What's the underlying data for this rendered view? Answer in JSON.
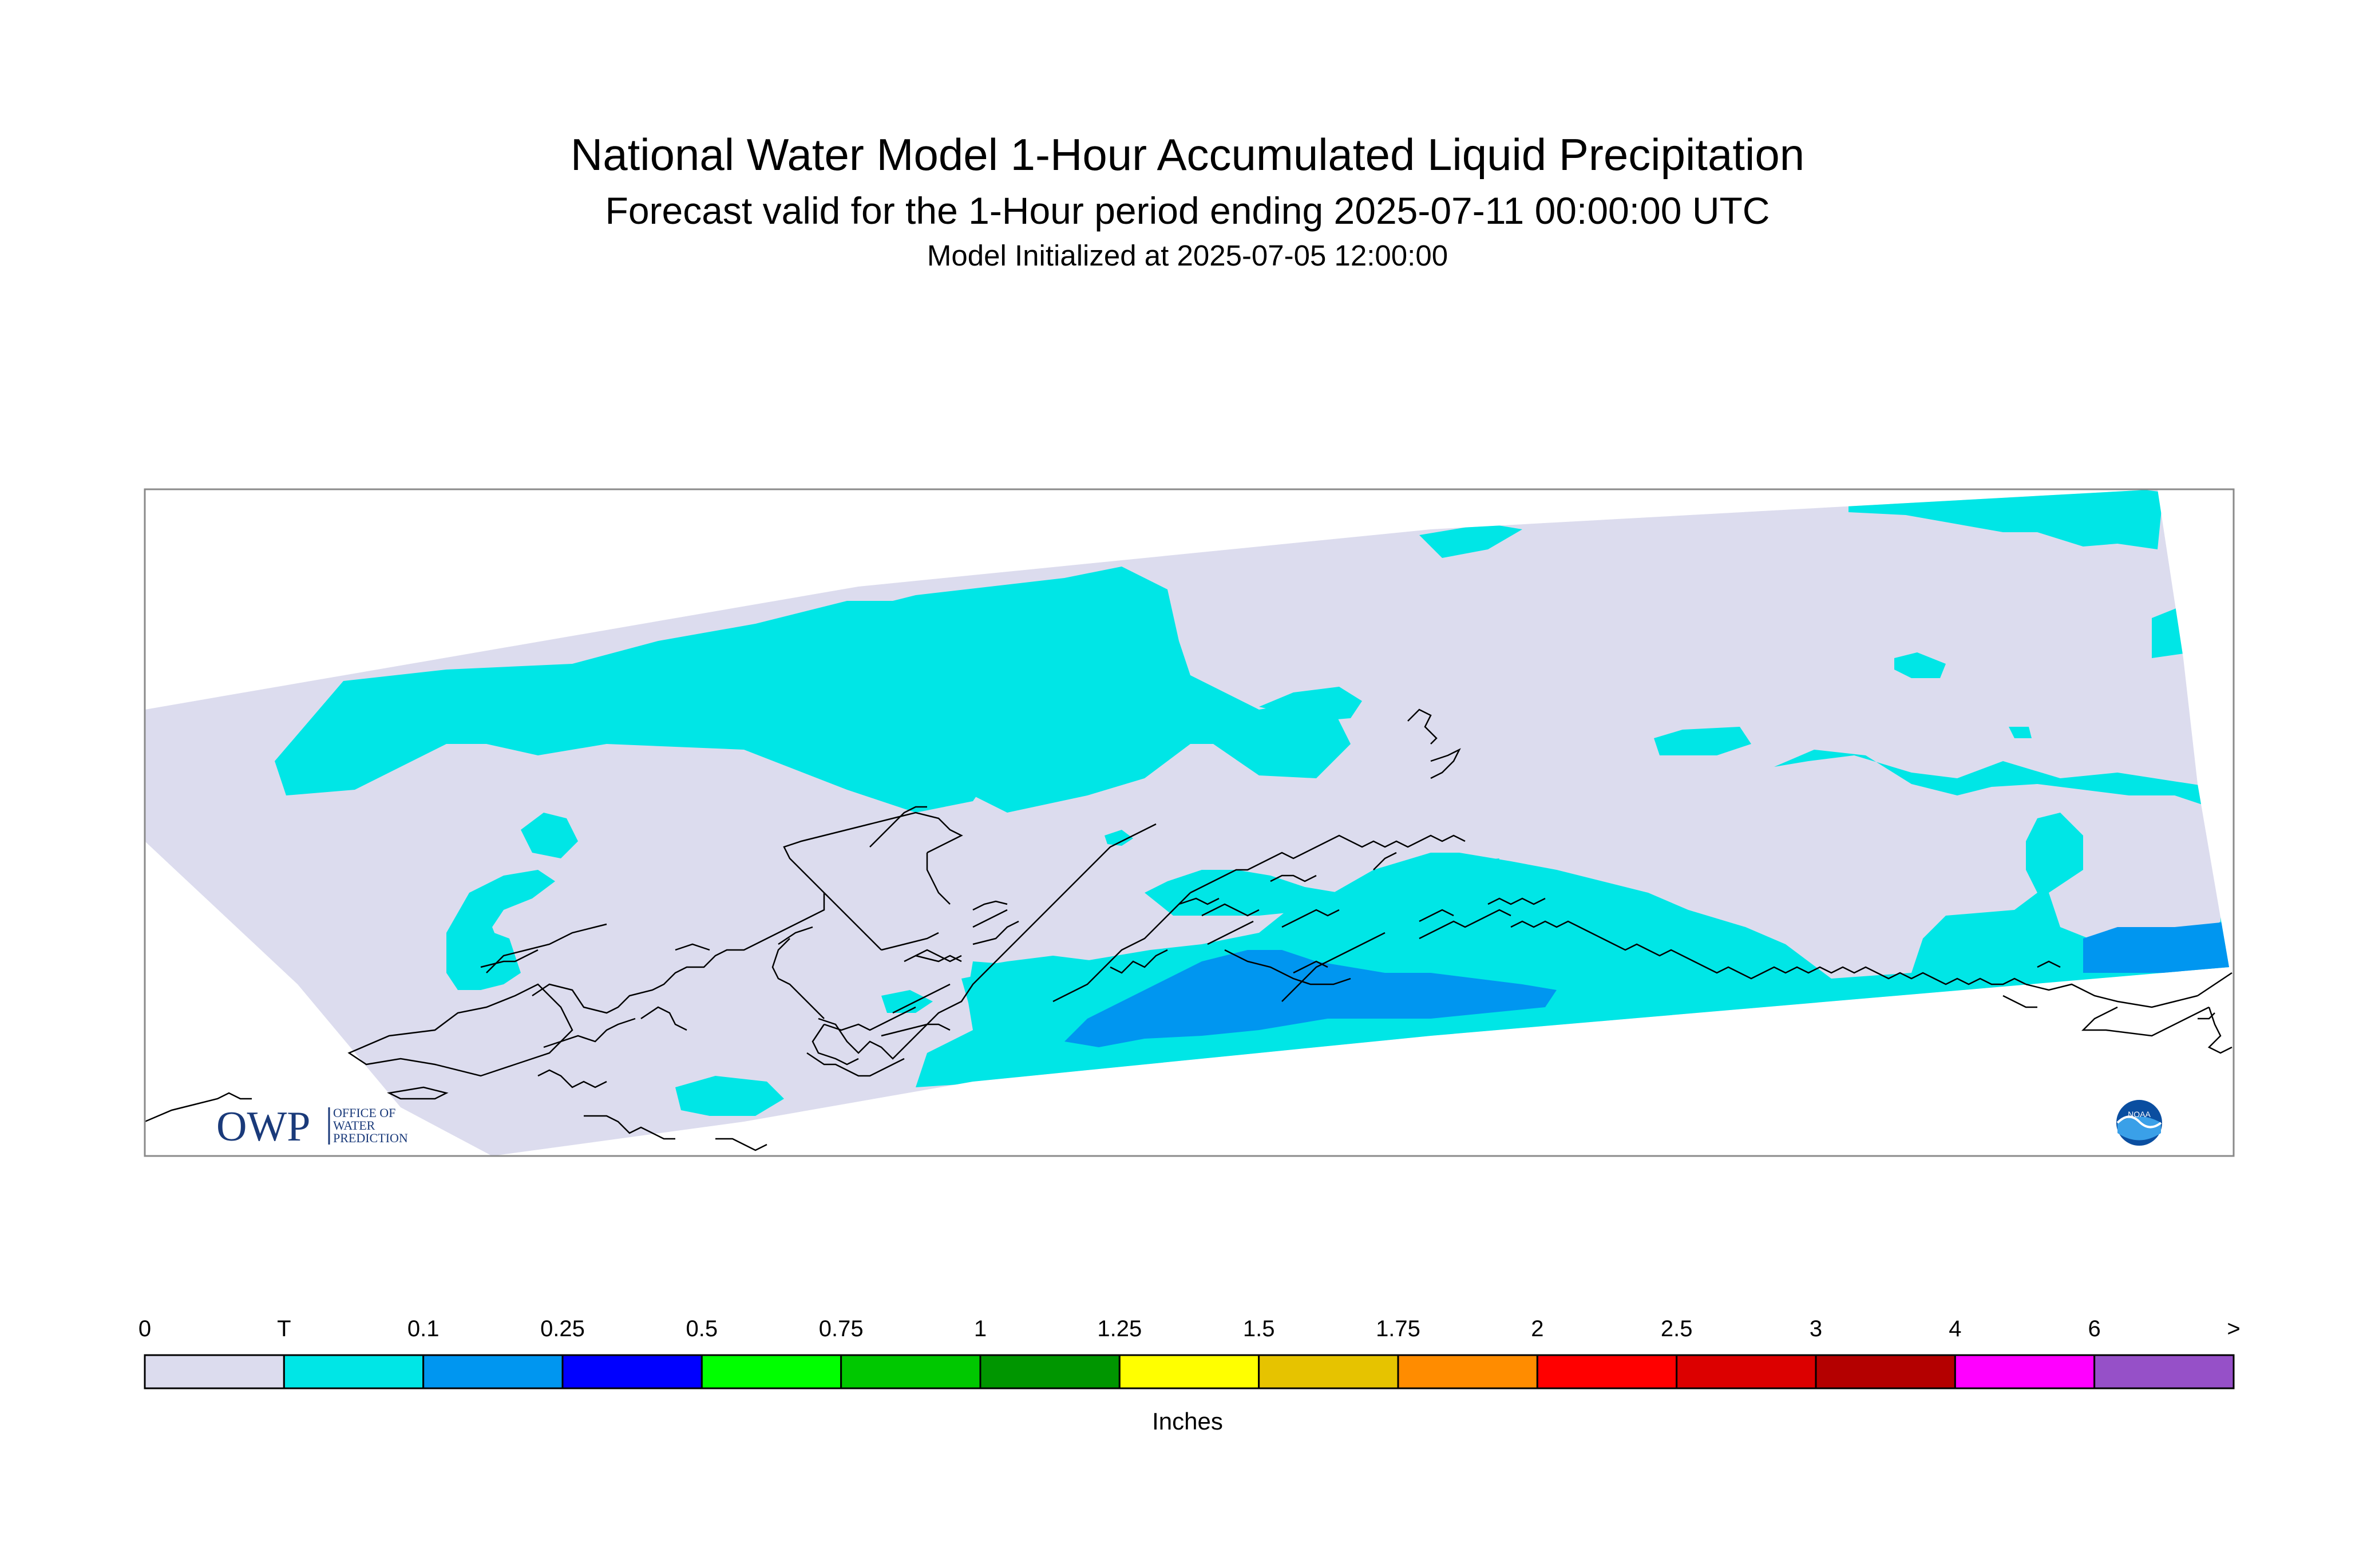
{
  "titles": {
    "main": "National Water Model 1-Hour Accumulated Liquid Precipitation",
    "sub": "Forecast valid for the 1-Hour period ending 2025-07-11 00:00:00 UTC",
    "init": "Model Initialized at 2025-07-05 12:00:00"
  },
  "logos": {
    "owp": {
      "mark": "OWP",
      "line1": "OFFICE OF",
      "line2": "WATER",
      "line3": "PREDICTION"
    },
    "noaa": {
      "icon": "noaa-seal-icon",
      "text": "NOAA"
    }
  },
  "legend": {
    "units": "Inches",
    "labels": [
      "0",
      "T",
      "0.1",
      "0.25",
      "0.5",
      "0.75",
      "1",
      "1.25",
      "1.5",
      "1.75",
      "2",
      "2.5",
      "3",
      "4",
      "6",
      ">"
    ],
    "colors": [
      "#dcdcee",
      "#00e6e6",
      "#0096f0",
      "#0000ff",
      "#00ff00",
      "#00c800",
      "#009600",
      "#ffff00",
      "#e6c300",
      "#ff8c00",
      "#ff0000",
      "#dc0000",
      "#b40000",
      "#ff00ff",
      "#9650c8"
    ]
  },
  "map": {
    "domain_fill": "#dcdcee",
    "trace_color": "#00e6e6",
    "light_color": "#0096f0",
    "coast_color": "#000000"
  }
}
